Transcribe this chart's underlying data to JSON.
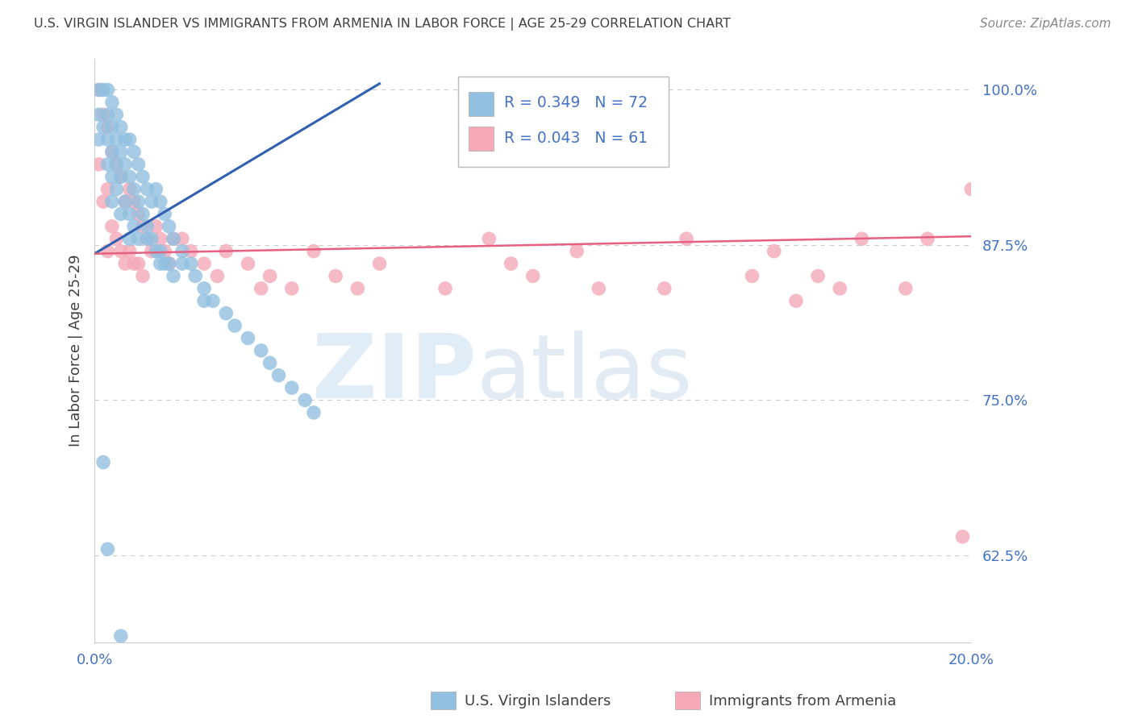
{
  "title": "U.S. VIRGIN ISLANDER VS IMMIGRANTS FROM ARMENIA IN LABOR FORCE | AGE 25-29 CORRELATION CHART",
  "source": "Source: ZipAtlas.com",
  "ylabel": "In Labor Force | Age 25-29",
  "xlim": [
    0.0,
    0.2
  ],
  "ylim": [
    0.555,
    1.025
  ],
  "yticks": [
    0.625,
    0.75,
    0.875,
    1.0
  ],
  "ytick_labels": [
    "62.5%",
    "75.0%",
    "87.5%",
    "100.0%"
  ],
  "xticks": [
    0.0,
    0.05,
    0.1,
    0.15,
    0.2
  ],
  "xtick_labels": [
    "0.0%",
    "",
    "",
    "",
    "20.0%"
  ],
  "title_color": "#404040",
  "source_color": "#888888",
  "blue_color": "#92c0e0",
  "pink_color": "#f4a8b8",
  "blue_line_color": "#3060b0",
  "pink_line_color": "#e86080",
  "tick_label_color": "#4472c4",
  "grid_color": "#cccccc",
  "legend_R_blue": "R = 0.349",
  "legend_N_blue": "N = 72",
  "legend_R_pink": "R = 0.043",
  "legend_N_pink": "N = 61",
  "legend_label_blue": "U.S. Virgin Islanders",
  "legend_label_pink": "Immigrants from Armenia",
  "blue_trend_x": [
    0.0,
    0.065
  ],
  "blue_trend_y": [
    0.868,
    1.005
  ],
  "pink_trend_x": [
    0.0,
    0.2
  ],
  "pink_trend_y": [
    0.868,
    0.882
  ],
  "blue_x": [
    0.001,
    0.001,
    0.001,
    0.002,
    0.002,
    0.003,
    0.003,
    0.003,
    0.003,
    0.004,
    0.004,
    0.004,
    0.004,
    0.004,
    0.005,
    0.005,
    0.005,
    0.005,
    0.006,
    0.006,
    0.006,
    0.006,
    0.007,
    0.007,
    0.007,
    0.008,
    0.008,
    0.008,
    0.009,
    0.009,
    0.009,
    0.01,
    0.01,
    0.01,
    0.011,
    0.011,
    0.012,
    0.012,
    0.013,
    0.013,
    0.014,
    0.014,
    0.015,
    0.015,
    0.016,
    0.016,
    0.017,
    0.017,
    0.018,
    0.018,
    0.02,
    0.022,
    0.023,
    0.025,
    0.027,
    0.03,
    0.032,
    0.035,
    0.038,
    0.04,
    0.042,
    0.045,
    0.048,
    0.05,
    0.012,
    0.02,
    0.025,
    0.008,
    0.015,
    0.006,
    0.003,
    0.002
  ],
  "blue_y": [
    1.0,
    0.98,
    0.96,
    1.0,
    0.97,
    1.0,
    0.98,
    0.96,
    0.94,
    0.99,
    0.97,
    0.95,
    0.93,
    0.91,
    0.98,
    0.96,
    0.94,
    0.92,
    0.97,
    0.95,
    0.93,
    0.9,
    0.96,
    0.94,
    0.91,
    0.96,
    0.93,
    0.9,
    0.95,
    0.92,
    0.89,
    0.94,
    0.91,
    0.88,
    0.93,
    0.9,
    0.92,
    0.89,
    0.91,
    0.88,
    0.92,
    0.87,
    0.91,
    0.87,
    0.9,
    0.86,
    0.89,
    0.86,
    0.88,
    0.85,
    0.87,
    0.86,
    0.85,
    0.84,
    0.83,
    0.82,
    0.81,
    0.8,
    0.79,
    0.78,
    0.77,
    0.76,
    0.75,
    0.74,
    0.88,
    0.86,
    0.83,
    0.88,
    0.86,
    0.56,
    0.63,
    0.7
  ],
  "pink_x": [
    0.001,
    0.001,
    0.002,
    0.002,
    0.003,
    0.003,
    0.003,
    0.004,
    0.004,
    0.005,
    0.005,
    0.006,
    0.006,
    0.007,
    0.007,
    0.008,
    0.008,
    0.009,
    0.009,
    0.01,
    0.01,
    0.011,
    0.011,
    0.012,
    0.013,
    0.014,
    0.015,
    0.016,
    0.017,
    0.018,
    0.02,
    0.022,
    0.025,
    0.028,
    0.03,
    0.035,
    0.038,
    0.04,
    0.045,
    0.05,
    0.055,
    0.06,
    0.065,
    0.08,
    0.09,
    0.095,
    0.1,
    0.11,
    0.115,
    0.13,
    0.135,
    0.15,
    0.155,
    0.16,
    0.165,
    0.17,
    0.175,
    0.185,
    0.19,
    0.198,
    0.2
  ],
  "pink_y": [
    1.0,
    0.94,
    0.98,
    0.91,
    0.97,
    0.92,
    0.87,
    0.95,
    0.89,
    0.94,
    0.88,
    0.93,
    0.87,
    0.91,
    0.86,
    0.92,
    0.87,
    0.91,
    0.86,
    0.9,
    0.86,
    0.89,
    0.85,
    0.88,
    0.87,
    0.89,
    0.88,
    0.87,
    0.86,
    0.88,
    0.88,
    0.87,
    0.86,
    0.85,
    0.87,
    0.86,
    0.84,
    0.85,
    0.84,
    0.87,
    0.85,
    0.84,
    0.86,
    0.84,
    0.88,
    0.86,
    0.85,
    0.87,
    0.84,
    0.84,
    0.88,
    0.85,
    0.87,
    0.83,
    0.85,
    0.84,
    0.88,
    0.84,
    0.88,
    0.64,
    0.92
  ]
}
